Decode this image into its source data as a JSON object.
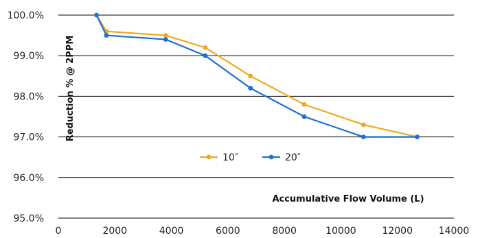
{
  "chart_data": {
    "type": "line",
    "ylabel": "Reduction % @ 2PPM",
    "xlabel": "Accumulative Flow Volume (L)",
    "xlim": [
      0,
      14000
    ],
    "ylim": [
      95.0,
      100.0
    ],
    "x_ticks": [
      "0",
      "2000",
      "4000",
      "6000",
      "8000",
      "10000",
      "12000",
      "14000"
    ],
    "y_ticks": [
      "95.0%",
      "96.0%",
      "97.0%",
      "98.0%",
      "99.0%",
      "100.0%"
    ],
    "grid": "horizontal",
    "legend_position": "center-left",
    "series": [
      {
        "name": "10″",
        "color": "#f0a81d",
        "points": [
          [
            1350,
            100.0
          ],
          [
            1700,
            99.6
          ],
          [
            3800,
            99.5
          ],
          [
            5200,
            99.2
          ],
          [
            6800,
            98.5
          ],
          [
            8700,
            97.8
          ],
          [
            10800,
            97.3
          ],
          [
            12700,
            97.0
          ]
        ]
      },
      {
        "name": "20″",
        "color": "#1f6fd6",
        "points": [
          [
            1350,
            100.0
          ],
          [
            1700,
            99.5
          ],
          [
            3800,
            99.4
          ],
          [
            5200,
            99.0
          ],
          [
            6800,
            98.2
          ],
          [
            8700,
            97.5
          ],
          [
            10800,
            97.0
          ],
          [
            12700,
            97.0
          ]
        ]
      }
    ]
  }
}
